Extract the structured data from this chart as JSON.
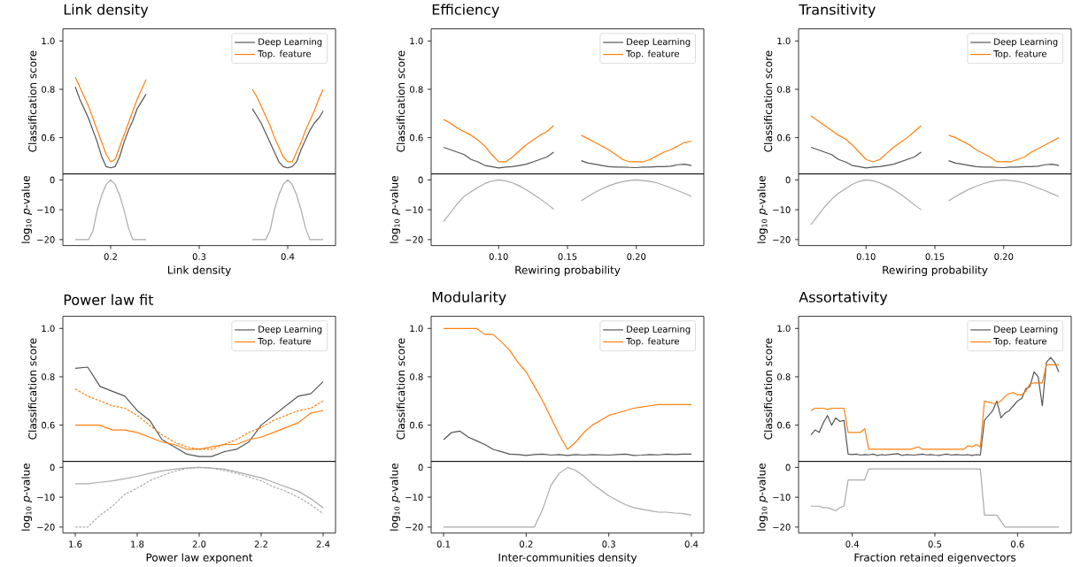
{
  "chart_data": [
    {
      "type": "line",
      "title": "Link density",
      "ylabel": "Classification score",
      "x": [
        0.16,
        0.165,
        0.17,
        0.175,
        0.18,
        0.185,
        0.19,
        0.195,
        0.2,
        0.205,
        0.21,
        0.215,
        0.22,
        0.225,
        0.23,
        0.235,
        0.24,
        0.3,
        0.36,
        0.365,
        0.37,
        0.375,
        0.38,
        0.385,
        0.39,
        0.395,
        0.4,
        0.405,
        0.41,
        0.415,
        0.42,
        0.425,
        0.43,
        0.435,
        0.44
      ],
      "series": [
        {
          "name": "Deep Learning",
          "color": "#555555",
          "values": [
            0.81,
            0.76,
            0.72,
            0.68,
            0.63,
            0.58,
            0.52,
            0.48,
            0.475,
            0.48,
            0.52,
            0.58,
            0.63,
            0.67,
            0.72,
            0.75,
            0.78,
            null,
            0.72,
            0.69,
            0.66,
            0.62,
            0.58,
            0.54,
            0.5,
            0.48,
            0.475,
            0.48,
            0.5,
            0.55,
            0.59,
            0.63,
            0.66,
            0.68,
            0.71
          ]
        },
        {
          "name": "Top. feature",
          "color": "#ff7f0e",
          "values": [
            0.85,
            0.81,
            0.77,
            0.73,
            0.68,
            0.63,
            0.58,
            0.53,
            0.5,
            0.51,
            0.56,
            0.61,
            0.66,
            0.71,
            0.76,
            0.8,
            0.84,
            null,
            0.8,
            0.77,
            0.73,
            0.69,
            0.65,
            0.6,
            0.56,
            0.52,
            0.5,
            0.5,
            0.54,
            0.58,
            0.63,
            0.67,
            0.71,
            0.76,
            0.8
          ]
        }
      ],
      "xlim": [
        0.146,
        0.454
      ],
      "ylim": [
        0.45,
        1.05
      ],
      "yticks": [
        0.6,
        0.8,
        {
          "value": 1,
          "label": "1.0"
        }
      ],
      "tick_labels": "y",
      "legend": "top right"
    },
    {
      "type": "line",
      "xlabel": "Link density",
      "ylabel": "log$_{10}$ *p*-value",
      "x": [
        0.16,
        0.165,
        0.17,
        0.175,
        0.18,
        0.185,
        0.19,
        0.195,
        0.2,
        0.205,
        0.21,
        0.215,
        0.22,
        0.225,
        0.23,
        0.235,
        0.24,
        0.3,
        0.36,
        0.365,
        0.37,
        0.375,
        0.38,
        0.385,
        0.39,
        0.395,
        0.4,
        0.405,
        0.41,
        0.415,
        0.42,
        0.425,
        0.43,
        0.435,
        0.44
      ],
      "series": [
        {
          "color": "#aaaaaa",
          "values": [
            -20,
            -20,
            -20,
            -20,
            -17,
            -10,
            -5,
            -1.5,
            0,
            -1.5,
            -5,
            -10,
            -16,
            -20,
            -20,
            -20,
            -20,
            null,
            -20,
            -20,
            -20,
            -20,
            -17,
            -10,
            -5,
            -1.5,
            0,
            -1.5,
            -5,
            -10,
            -16,
            -20,
            -20,
            -20,
            -20
          ]
        }
      ],
      "xlim": [
        0.146,
        0.454
      ],
      "ylim": [
        -22,
        2
      ],
      "xticks": [
        0.2,
        0.3,
        0.4
      ],
      "yticks": [
        0,
        {
          "value": -10,
          "label": "−10"
        },
        {
          "value": -20,
          "label": "−20"
        }
      ]
    },
    {
      "type": "line",
      "title": "Efficiency",
      "ylabel": "Classification score",
      "x": [
        0.06,
        0.065,
        0.07,
        0.075,
        0.08,
        0.085,
        0.09,
        0.095,
        0.1,
        0.105,
        0.11,
        0.115,
        0.12,
        0.125,
        0.13,
        0.135,
        0.14,
        0.15,
        0.16,
        0.165,
        0.17,
        0.175,
        0.18,
        0.185,
        0.19,
        0.195,
        0.2,
        0.205,
        0.21,
        0.215,
        0.22,
        0.225,
        0.23,
        0.235,
        0.24
      ],
      "series": [
        {
          "name": "Deep Learning",
          "color": "#555555",
          "values": [
            0.56,
            0.55,
            0.54,
            0.53,
            0.51,
            0.5,
            0.485,
            0.48,
            0.475,
            0.478,
            0.48,
            0.485,
            0.49,
            0.5,
            0.51,
            0.52,
            0.54,
            null,
            0.505,
            0.495,
            0.49,
            0.485,
            0.48,
            0.478,
            0.478,
            0.477,
            0.476,
            0.478,
            0.478,
            0.48,
            0.48,
            0.482,
            0.488,
            0.49,
            0.485
          ]
        },
        {
          "name": "Top. feature",
          "color": "#ff7f0e",
          "values": [
            0.675,
            0.66,
            0.64,
            0.625,
            0.61,
            0.59,
            0.565,
            0.53,
            0.5,
            0.5,
            0.52,
            0.545,
            0.57,
            0.59,
            0.61,
            0.625,
            0.65,
            null,
            0.61,
            0.595,
            0.58,
            0.565,
            0.55,
            0.53,
            0.51,
            0.5,
            0.5,
            0.5,
            0.51,
            0.525,
            0.54,
            0.55,
            0.565,
            0.58,
            0.585
          ]
        }
      ],
      "xlim": [
        0.051,
        0.249
      ],
      "ylim": [
        0.45,
        1.05
      ],
      "yticks": [
        0.6,
        0.8,
        {
          "value": 1,
          "label": "1.0"
        }
      ],
      "tick_labels": "y",
      "legend": "top right"
    },
    {
      "type": "line",
      "xlabel": "Rewiring probability",
      "ylabel": "log$_{10}$ *p*-value",
      "x": [
        0.06,
        0.065,
        0.07,
        0.075,
        0.08,
        0.085,
        0.09,
        0.095,
        0.1,
        0.105,
        0.11,
        0.115,
        0.12,
        0.125,
        0.13,
        0.135,
        0.14,
        0.15,
        0.16,
        0.165,
        0.17,
        0.175,
        0.18,
        0.185,
        0.19,
        0.195,
        0.2,
        0.205,
        0.21,
        0.215,
        0.22,
        0.225,
        0.23,
        0.235,
        0.24
      ],
      "series": [
        {
          "color": "#aaaaaa",
          "values": [
            -14,
            -11,
            -8,
            -5.5,
            -4,
            -2.5,
            -1.2,
            -0.4,
            0,
            -0.3,
            -1,
            -2,
            -3.3,
            -4.8,
            -6.3,
            -8,
            -9.8,
            null,
            -7,
            -5.5,
            -4.2,
            -3,
            -2,
            -1.2,
            -0.6,
            -0.2,
            0,
            -0.2,
            -0.5,
            -1,
            -1.8,
            -2.7,
            -3.6,
            -4.5,
            -5.5
          ]
        }
      ],
      "xlim": [
        0.051,
        0.249
      ],
      "ylim": [
        -22,
        2
      ],
      "xticks": [
        {
          "value": 0.1,
          "label": "0.10"
        },
        0.15,
        {
          "value": 0.2,
          "label": "0.20"
        }
      ],
      "yticks": [
        0,
        {
          "value": -10,
          "label": "−10"
        },
        {
          "value": -20,
          "label": "−20"
        }
      ]
    },
    {
      "type": "line",
      "title": "Transitivity",
      "ylabel": "Classification score",
      "x": [
        0.06,
        0.065,
        0.07,
        0.075,
        0.08,
        0.085,
        0.09,
        0.095,
        0.1,
        0.105,
        0.11,
        0.115,
        0.12,
        0.125,
        0.13,
        0.135,
        0.14,
        0.15,
        0.16,
        0.165,
        0.17,
        0.175,
        0.18,
        0.185,
        0.19,
        0.195,
        0.2,
        0.205,
        0.21,
        0.215,
        0.22,
        0.225,
        0.23,
        0.235,
        0.24
      ],
      "series": [
        {
          "name": "Deep Learning",
          "color": "#555555",
          "values": [
            0.56,
            0.55,
            0.54,
            0.53,
            0.51,
            0.5,
            0.485,
            0.48,
            0.475,
            0.478,
            0.48,
            0.485,
            0.49,
            0.5,
            0.51,
            0.52,
            0.54,
            null,
            0.505,
            0.495,
            0.49,
            0.485,
            0.48,
            0.478,
            0.478,
            0.477,
            0.476,
            0.478,
            0.478,
            0.48,
            0.48,
            0.482,
            0.488,
            0.49,
            0.485
          ]
        },
        {
          "name": "Top. feature",
          "color": "#ff7f0e",
          "values": [
            0.69,
            0.67,
            0.65,
            0.63,
            0.61,
            0.595,
            0.57,
            0.54,
            0.51,
            0.5,
            0.51,
            0.535,
            0.56,
            0.58,
            0.6,
            0.625,
            0.65,
            null,
            0.61,
            0.6,
            0.585,
            0.57,
            0.55,
            0.535,
            0.52,
            0.5,
            0.5,
            0.5,
            0.51,
            0.52,
            0.54,
            0.555,
            0.57,
            0.585,
            0.6
          ]
        }
      ],
      "xlim": [
        0.051,
        0.249
      ],
      "ylim": [
        0.45,
        1.05
      ],
      "yticks": [
        0.6,
        0.8,
        {
          "value": 1,
          "label": "1.0"
        }
      ],
      "tick_labels": "y",
      "legend": "top right"
    },
    {
      "type": "line",
      "xlabel": "Rewiring probability",
      "ylabel": "log$_{10}$ *p*-value",
      "x": [
        0.06,
        0.065,
        0.07,
        0.075,
        0.08,
        0.085,
        0.09,
        0.095,
        0.1,
        0.105,
        0.11,
        0.115,
        0.12,
        0.125,
        0.13,
        0.135,
        0.14,
        0.15,
        0.16,
        0.165,
        0.17,
        0.175,
        0.18,
        0.185,
        0.19,
        0.195,
        0.2,
        0.205,
        0.21,
        0.215,
        0.22,
        0.225,
        0.23,
        0.235,
        0.24
      ],
      "series": [
        {
          "color": "#aaaaaa",
          "values": [
            -15,
            -12,
            -9,
            -6.5,
            -4.5,
            -3,
            -1.5,
            -0.5,
            0,
            -0.3,
            -1,
            -2,
            -3.3,
            -4.8,
            -6.5,
            -8.3,
            -10,
            null,
            -7,
            -5.6,
            -4.3,
            -3.1,
            -2.1,
            -1.3,
            -0.6,
            -0.2,
            0,
            -0.2,
            -0.5,
            -1,
            -1.8,
            -2.7,
            -3.6,
            -4.6,
            -5.6
          ]
        }
      ],
      "xlim": [
        0.051,
        0.249
      ],
      "ylim": [
        -22,
        2
      ],
      "xticks": [
        {
          "value": 0.1,
          "label": "0.10"
        },
        0.15,
        {
          "value": 0.2,
          "label": "0.20"
        }
      ],
      "yticks": [
        0,
        {
          "value": -10,
          "label": "−10"
        },
        {
          "value": -20,
          "label": "−20"
        }
      ]
    },
    {
      "type": "line",
      "title": "Power law fit",
      "ylabel": "Classification score",
      "x": [
        1.6,
        1.64,
        1.68,
        1.72,
        1.76,
        1.8,
        1.84,
        1.88,
        1.92,
        1.96,
        2.0,
        2.04,
        2.08,
        2.12,
        2.16,
        2.2,
        2.24,
        2.28,
        2.32,
        2.36,
        2.4
      ],
      "series": [
        {
          "name": "Deep Learning",
          "color": "#555555",
          "values": [
            0.835,
            0.84,
            0.76,
            0.74,
            0.72,
            0.66,
            0.62,
            0.54,
            0.51,
            0.48,
            0.47,
            0.47,
            0.49,
            0.5,
            0.53,
            0.6,
            0.64,
            0.68,
            0.72,
            0.73,
            0.78
          ]
        },
        {
          "name": "Top. feature",
          "color": "#ff7f0e",
          "values": [
            0.6,
            0.6,
            0.6,
            0.58,
            0.58,
            0.57,
            0.55,
            0.53,
            0.52,
            0.5,
            0.5,
            0.51,
            0.52,
            0.52,
            0.54,
            0.55,
            0.57,
            0.59,
            0.61,
            0.65,
            0.66
          ]
        },
        {
          "color": "#ff7f0e",
          "line_style": "dashed",
          "values": [
            0.75,
            0.72,
            0.7,
            0.68,
            0.67,
            0.64,
            0.6,
            0.56,
            0.53,
            0.51,
            0.5,
            0.5,
            0.52,
            0.54,
            0.57,
            0.59,
            0.62,
            0.64,
            0.66,
            0.67,
            0.7
          ]
        }
      ],
      "xlim": [
        1.56,
        2.44
      ],
      "ylim": [
        0.45,
        1.05
      ],
      "yticks": [
        0.6,
        0.8,
        {
          "value": 1,
          "label": "1.0"
        }
      ],
      "tick_labels": "y",
      "legend": "top right"
    },
    {
      "type": "line",
      "xlabel": "Power law exponent",
      "ylabel": "log$_{10}$ *p*-value",
      "x": [
        1.6,
        1.64,
        1.68,
        1.72,
        1.76,
        1.8,
        1.84,
        1.88,
        1.92,
        1.96,
        2.0,
        2.04,
        2.08,
        2.12,
        2.16,
        2.2,
        2.24,
        2.28,
        2.32,
        2.36,
        2.4
      ],
      "series": [
        {
          "color": "#aaaaaa",
          "values": [
            -5.5,
            -5.5,
            -5,
            -4.5,
            -3.8,
            -3,
            -2,
            -1.2,
            -0.6,
            -0.2,
            0,
            -0.2,
            -0.6,
            -1.5,
            -2.5,
            -3.5,
            -5,
            -6.5,
            -8,
            -10.5,
            -13.5
          ]
        },
        {
          "color": "#aaaaaa",
          "line_style": "dashed",
          "values": [
            -20,
            -20,
            -16,
            -13,
            -9,
            -7,
            -4.5,
            -2.8,
            -1.3,
            -0.4,
            0,
            -0.3,
            -1,
            -2,
            -3.2,
            -4.5,
            -6.5,
            -8,
            -10,
            -12.5,
            -15.5
          ]
        }
      ],
      "xlim": [
        1.56,
        2.44
      ],
      "ylim": [
        -22,
        2
      ],
      "xticks": [
        1.6,
        1.8,
        {
          "value": 2,
          "label": "2.0"
        },
        2.2,
        2.4
      ],
      "yticks": [
        0,
        {
          "value": -10,
          "label": "−10"
        },
        {
          "value": -20,
          "label": "−20"
        }
      ]
    },
    {
      "type": "line",
      "title": "Modularity",
      "ylabel": "Classification score",
      "x": [
        0.1,
        0.11,
        0.12,
        0.13,
        0.14,
        0.15,
        0.16,
        0.17,
        0.18,
        0.19,
        0.2,
        0.21,
        0.22,
        0.23,
        0.24,
        0.25,
        0.26,
        0.27,
        0.28,
        0.29,
        0.3,
        0.31,
        0.32,
        0.33,
        0.34,
        0.35,
        0.36,
        0.37,
        0.38,
        0.39,
        0.4
      ],
      "series": [
        {
          "name": "Deep Learning",
          "color": "#555555",
          "values": [
            0.54,
            0.57,
            0.575,
            0.55,
            0.535,
            0.52,
            0.5,
            0.49,
            0.48,
            0.478,
            0.475,
            0.478,
            0.48,
            0.476,
            0.478,
            0.475,
            0.478,
            0.476,
            0.478,
            0.477,
            0.476,
            0.478,
            0.48,
            0.475,
            0.476,
            0.478,
            0.477,
            0.48,
            0.478,
            0.48,
            0.48
          ]
        },
        {
          "name": "Top. feature",
          "color": "#ff7f0e",
          "values": [
            1,
            1,
            1,
            1,
            1,
            0.975,
            0.975,
            0.945,
            0.91,
            0.86,
            0.82,
            0.76,
            0.7,
            0.63,
            0.56,
            0.5,
            0.53,
            0.57,
            0.6,
            0.62,
            0.64,
            0.65,
            0.66,
            0.67,
            0.675,
            0.68,
            0.685,
            0.685,
            0.685,
            0.685,
            0.685
          ]
        }
      ],
      "xlim": [
        0.085,
        0.415
      ],
      "ylim": [
        0.45,
        1.05
      ],
      "yticks": [
        0.6,
        0.8,
        {
          "value": 1,
          "label": "1.0"
        }
      ],
      "tick_labels": "y",
      "legend": "top right"
    },
    {
      "type": "line",
      "xlabel": "Inter-communities density",
      "ylabel": "log$_{10}$ *p*-value",
      "x": [
        0.1,
        0.11,
        0.12,
        0.13,
        0.14,
        0.15,
        0.16,
        0.17,
        0.18,
        0.19,
        0.2,
        0.21,
        0.22,
        0.23,
        0.24,
        0.25,
        0.26,
        0.27,
        0.28,
        0.29,
        0.3,
        0.31,
        0.32,
        0.33,
        0.34,
        0.35,
        0.36,
        0.37,
        0.38,
        0.39,
        0.4
      ],
      "series": [
        {
          "color": "#aaaaaa",
          "values": [
            -20,
            -20,
            -20,
            -20,
            -20,
            -20,
            -20,
            -20,
            -20,
            -20,
            -20,
            -20,
            -14,
            -6,
            -2,
            0,
            -1,
            -3,
            -5.5,
            -7.5,
            -9.5,
            -11,
            -12.5,
            -13.5,
            -14,
            -14.5,
            -15,
            -15,
            -15.3,
            -15.5,
            -16
          ]
        }
      ],
      "xlim": [
        0.085,
        0.415
      ],
      "ylim": [
        -22,
        2
      ],
      "xticks": [
        0.1,
        0.2,
        0.3,
        0.4
      ],
      "yticks": [
        0,
        {
          "value": -10,
          "label": "−10"
        },
        {
          "value": -20,
          "label": "−20"
        }
      ]
    },
    {
      "type": "line",
      "title": "Assortativity",
      "ylabel": "Classification score",
      "x": [
        0.35,
        0.355,
        0.36,
        0.365,
        0.37,
        0.375,
        0.38,
        0.385,
        0.39,
        0.395,
        0.4,
        0.405,
        0.41,
        0.415,
        0.42,
        0.425,
        0.43,
        0.435,
        0.44,
        0.445,
        0.45,
        0.455,
        0.46,
        0.465,
        0.47,
        0.475,
        0.48,
        0.485,
        0.49,
        0.495,
        0.5,
        0.505,
        0.51,
        0.515,
        0.52,
        0.525,
        0.53,
        0.535,
        0.54,
        0.545,
        0.55,
        0.555,
        0.56,
        0.565,
        0.57,
        0.575,
        0.58,
        0.585,
        0.59,
        0.595,
        0.6,
        0.605,
        0.61,
        0.615,
        0.62,
        0.625,
        0.63,
        0.635,
        0.64,
        0.645,
        0.65
      ],
      "series": [
        {
          "name": "Deep Learning",
          "color": "#555555",
          "values": [
            0.56,
            0.58,
            0.57,
            0.61,
            0.64,
            0.6,
            0.63,
            0.615,
            0.62,
            0.48,
            0.478,
            0.48,
            0.476,
            0.478,
            0.477,
            0.48,
            0.475,
            0.478,
            0.476,
            0.478,
            0.48,
            0.482,
            0.475,
            0.478,
            0.477,
            0.476,
            0.478,
            0.48,
            0.477,
            0.478,
            0.476,
            0.475,
            0.478,
            0.48,
            0.476,
            0.478,
            0.477,
            0.476,
            0.478,
            0.475,
            0.478,
            0.476,
            0.62,
            0.64,
            0.66,
            0.7,
            0.63,
            0.65,
            0.66,
            0.68,
            0.7,
            0.71,
            0.75,
            0.76,
            0.82,
            0.8,
            0.68,
            0.86,
            0.88,
            0.86,
            0.82
          ]
        },
        {
          "name": "Top. feature",
          "color": "#ff7f0e",
          "values": [
            0.66,
            0.67,
            0.67,
            0.67,
            0.665,
            0.67,
            0.67,
            0.67,
            0.67,
            0.57,
            0.57,
            0.57,
            0.57,
            0.585,
            0.5,
            0.5,
            0.5,
            0.5,
            0.5,
            0.5,
            0.5,
            0.5,
            0.5,
            0.5,
            0.5,
            0.505,
            0.51,
            0.5,
            0.5,
            0.5,
            0.5,
            0.5,
            0.5,
            0.5,
            0.5,
            0.5,
            0.5,
            0.5,
            0.515,
            0.51,
            0.52,
            0.51,
            0.7,
            0.695,
            0.69,
            0.69,
            0.7,
            0.72,
            0.73,
            0.735,
            0.725,
            0.725,
            0.74,
            0.77,
            0.775,
            0.775,
            0.775,
            0.85,
            0.85,
            0.85,
            0.85
          ]
        }
      ],
      "xlim": [
        0.335,
        0.665
      ],
      "ylim": [
        0.45,
        1.05
      ],
      "yticks": [
        0.6,
        0.8,
        {
          "value": 1,
          "label": "1.0"
        }
      ],
      "tick_labels": "y",
      "legend": "top right"
    },
    {
      "type": "line",
      "xlabel": "Fraction retained eigenvectors",
      "ylabel": "log$_{10}$ *p*-value",
      "x": [
        0.35,
        0.355,
        0.36,
        0.365,
        0.37,
        0.375,
        0.38,
        0.385,
        0.39,
        0.395,
        0.4,
        0.405,
        0.41,
        0.415,
        0.42,
        0.425,
        0.43,
        0.435,
        0.44,
        0.445,
        0.45,
        0.455,
        0.46,
        0.465,
        0.47,
        0.475,
        0.48,
        0.485,
        0.49,
        0.495,
        0.5,
        0.505,
        0.51,
        0.515,
        0.52,
        0.525,
        0.53,
        0.535,
        0.54,
        0.545,
        0.55,
        0.555,
        0.56,
        0.565,
        0.57,
        0.575,
        0.58,
        0.585,
        0.59,
        0.595,
        0.6,
        0.605,
        0.61,
        0.615,
        0.62,
        0.625,
        0.63,
        0.635,
        0.64,
        0.645,
        0.65
      ],
      "series": [
        {
          "color": "#aaaaaa",
          "values": [
            -13,
            -13,
            -13,
            -13.5,
            -13.5,
            -14,
            -14.5,
            -13.5,
            -13,
            -4.2,
            -4.2,
            -4.2,
            -4.2,
            -4.2,
            -0.5,
            -0.5,
            -0.5,
            -0.5,
            -0.5,
            -0.5,
            -0.5,
            -0.5,
            -0.5,
            -0.5,
            -0.5,
            -0.5,
            -0.5,
            -0.5,
            -0.5,
            -0.5,
            -0.5,
            -0.5,
            -0.5,
            -0.5,
            -0.5,
            -0.5,
            -0.5,
            -0.5,
            -0.5,
            -0.5,
            -0.5,
            -0.5,
            -16,
            -16,
            -16,
            -16,
            -18,
            -20,
            -20,
            -20,
            -20,
            -20,
            -20,
            -20,
            -20,
            -20,
            -20,
            -20,
            -20,
            -20,
            -20
          ]
        }
      ],
      "xlim": [
        0.335,
        0.665
      ],
      "ylim": [
        -22,
        2
      ],
      "xticks": [
        0.4,
        0.5,
        0.6
      ],
      "yticks": [
        0,
        {
          "value": -10,
          "label": "−10"
        },
        {
          "value": -20,
          "label": "−20"
        }
      ]
    }
  ]
}
